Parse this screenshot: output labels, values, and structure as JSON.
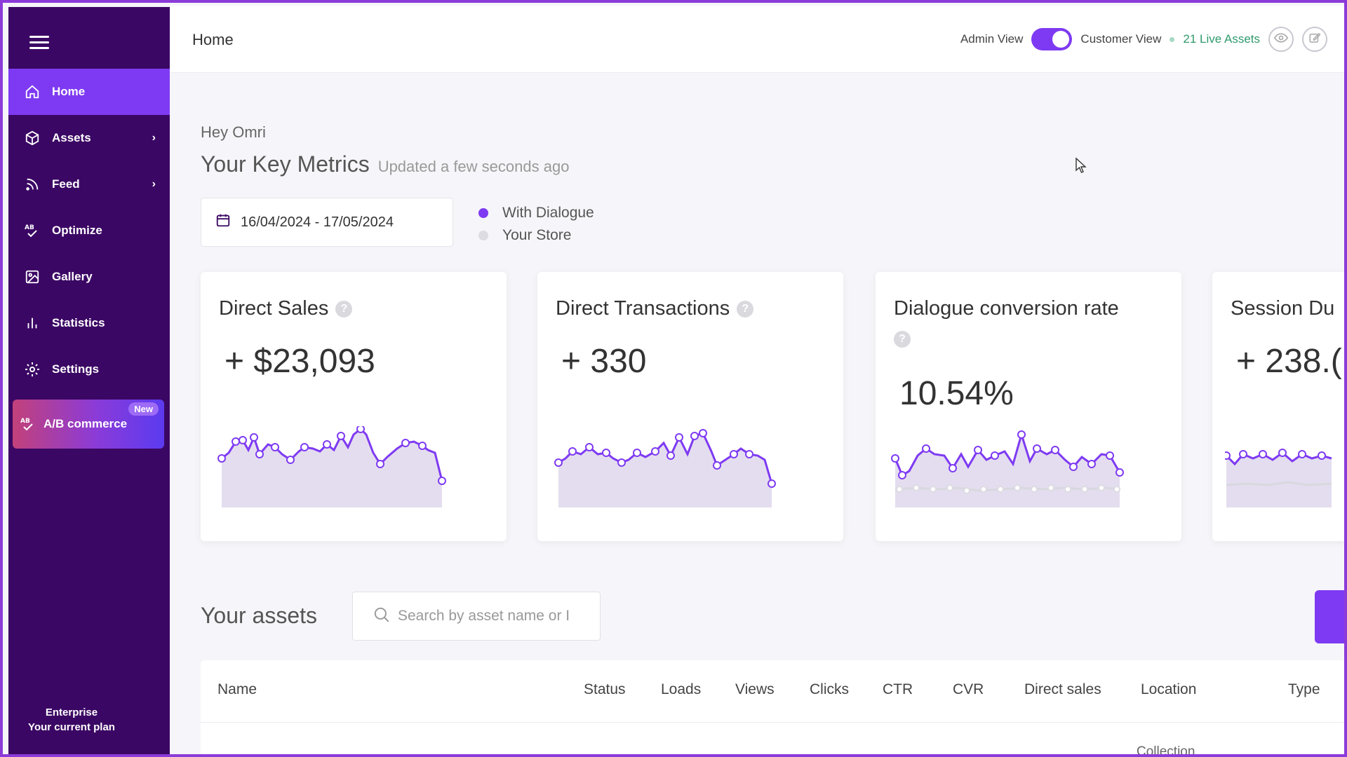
{
  "sidebar": {
    "items": [
      {
        "label": "Home",
        "icon": "home-icon",
        "active": true
      },
      {
        "label": "Assets",
        "icon": "box-icon",
        "chevron": true
      },
      {
        "label": "Feed",
        "icon": "rss-icon",
        "chevron": true
      },
      {
        "label": "Optimize",
        "icon": "ab-icon"
      },
      {
        "label": "Gallery",
        "icon": "image-icon"
      },
      {
        "label": "Statistics",
        "icon": "bar-chart-icon"
      },
      {
        "label": "Settings",
        "icon": "gear-icon"
      }
    ],
    "ab_commerce": {
      "label": "A/B commerce",
      "badge": "New"
    },
    "plan": {
      "name": "Enterprise",
      "caption": "Your current plan"
    }
  },
  "header": {
    "title": "Home",
    "admin_view": "Admin View",
    "customer_view": "Customer View",
    "live_assets": "21 Live Assets",
    "toggle_on": true
  },
  "greeting": "Hey Omri",
  "metrics_title": "Your Key Metrics",
  "metrics_updated": "Updated a few seconds ago",
  "date_range": "16/04/2024 - 17/05/2024",
  "legend": [
    {
      "label": "With Dialogue",
      "color": "#7e3af2"
    },
    {
      "label": "Your Store",
      "color": "#dcdce2"
    }
  ],
  "cards": [
    {
      "title": "Direct Sales",
      "value": "+ $23,093"
    },
    {
      "title": "Direct Transactions",
      "value": "+ 330"
    },
    {
      "title": "Dialogue conversion rate",
      "value": "10.54%"
    },
    {
      "title": "Session Du",
      "value": "+ 238.("
    }
  ],
  "assets": {
    "title": "Your assets",
    "search_placeholder": "Search by asset name or I",
    "columns": [
      "Name",
      "Status",
      "Loads",
      "Views",
      "Clicks",
      "CTR",
      "CVR",
      "Direct sales",
      "Location",
      "Type"
    ],
    "first_row_location": "Collection"
  },
  "colors": {
    "sidebar": "#3b0764",
    "accent": "#7e3af2",
    "live": "#2f9a6c"
  }
}
